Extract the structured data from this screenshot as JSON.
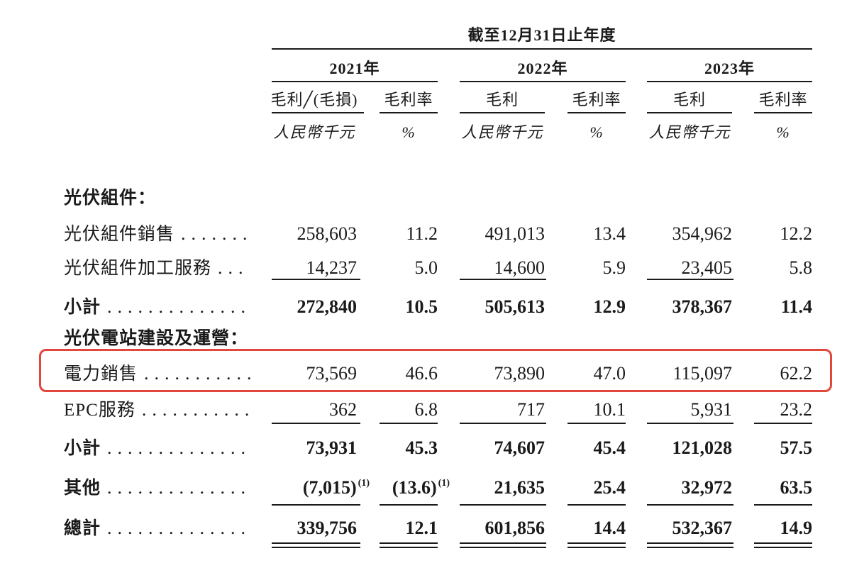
{
  "header": {
    "period": "截至12月31日止年度",
    "years": [
      "2021年",
      "2022年",
      "2023年"
    ],
    "columns": [
      {
        "label": "毛利╱(毛損)",
        "unit": "人民幣千元"
      },
      {
        "label": "毛利率",
        "unit": "%"
      },
      {
        "label": "毛利",
        "unit": "人民幣千元"
      },
      {
        "label": "毛利率",
        "unit": "%"
      },
      {
        "label": "毛利",
        "unit": "人民幣千元"
      },
      {
        "label": "毛利率",
        "unit": "%"
      }
    ]
  },
  "rows": [
    {
      "label": "光伏組件："
    },
    {
      "label": "光伏組件銷售",
      "leader": ".......",
      "values": [
        "258,603",
        "11.2",
        "491,013",
        "13.4",
        "354,962",
        "12.2"
      ]
    },
    {
      "label": "光伏組件加工服務",
      "leader": "...",
      "values": [
        "14,237",
        "5.0",
        "14,600",
        "5.9",
        "23,405",
        "5.8"
      ]
    },
    {
      "label": "小計",
      "leader": "..............",
      "values": [
        "272,840",
        "10.5",
        "505,613",
        "12.9",
        "378,367",
        "11.4"
      ]
    },
    {
      "label": "光伏電站建設及運營："
    },
    {
      "label": "電力銷售",
      "leader": "...........",
      "highlighted": true,
      "values": [
        "73,569",
        "46.6",
        "73,890",
        "47.0",
        "115,097",
        "62.2"
      ]
    },
    {
      "label": "EPC服務",
      "leader": "...........",
      "values": [
        "362",
        "6.8",
        "717",
        "10.1",
        "5,931",
        "23.2"
      ]
    },
    {
      "label": "小計",
      "leader": "..............",
      "values": [
        "73,931",
        "45.3",
        "74,607",
        "45.4",
        "121,028",
        "57.5"
      ]
    },
    {
      "label": "其他",
      "leader": "..............",
      "values": [
        "(7,015)",
        "(13.6)",
        "21,635",
        "25.4",
        "32,972",
        "63.5"
      ],
      "notes": [
        "(1)",
        "(1)"
      ]
    },
    {
      "label": "總計",
      "leader": "..............",
      "values": [
        "339,756",
        "12.1",
        "601,856",
        "14.4",
        "532,367",
        "14.9"
      ]
    }
  ],
  "colors": {
    "highlight": "#e2473b",
    "text": "#1a1a1a"
  }
}
